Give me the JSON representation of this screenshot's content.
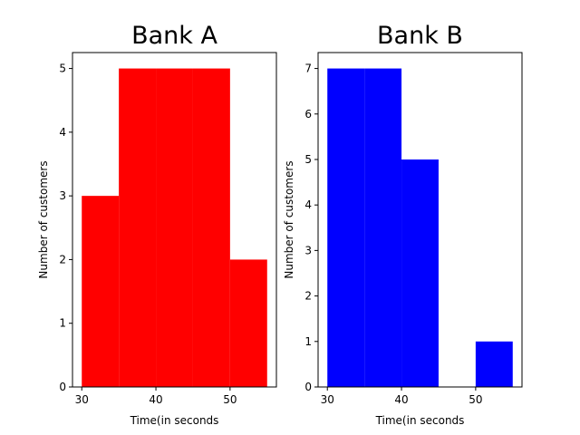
{
  "chart_data": [
    {
      "type": "histogram",
      "title": "Bank A",
      "xlabel": "Time(in seconds",
      "ylabel": "Number of customers",
      "bins": [
        30,
        35,
        40,
        45,
        50,
        55
      ],
      "counts": [
        3,
        5,
        5,
        5,
        2
      ],
      "color": "#ff0000",
      "xlim": [
        28.75,
        56.25
      ],
      "xticks": [
        30,
        40,
        50
      ],
      "ylim": [
        0,
        5.25
      ],
      "yticks": [
        0,
        1,
        2,
        3,
        4,
        5
      ]
    },
    {
      "type": "histogram",
      "title": "Bank B",
      "xlabel": "Time(in seconds",
      "ylabel": "Number of customers",
      "bins": [
        30,
        35,
        40,
        45,
        50,
        55
      ],
      "counts": [
        7,
        7,
        5,
        0,
        1
      ],
      "color": "#0000ff",
      "xlim": [
        28.75,
        56.25
      ],
      "xticks": [
        30,
        40,
        50
      ],
      "ylim": [
        0,
        7.35
      ],
      "yticks": [
        0,
        1,
        2,
        3,
        4,
        5,
        6,
        7
      ]
    }
  ]
}
